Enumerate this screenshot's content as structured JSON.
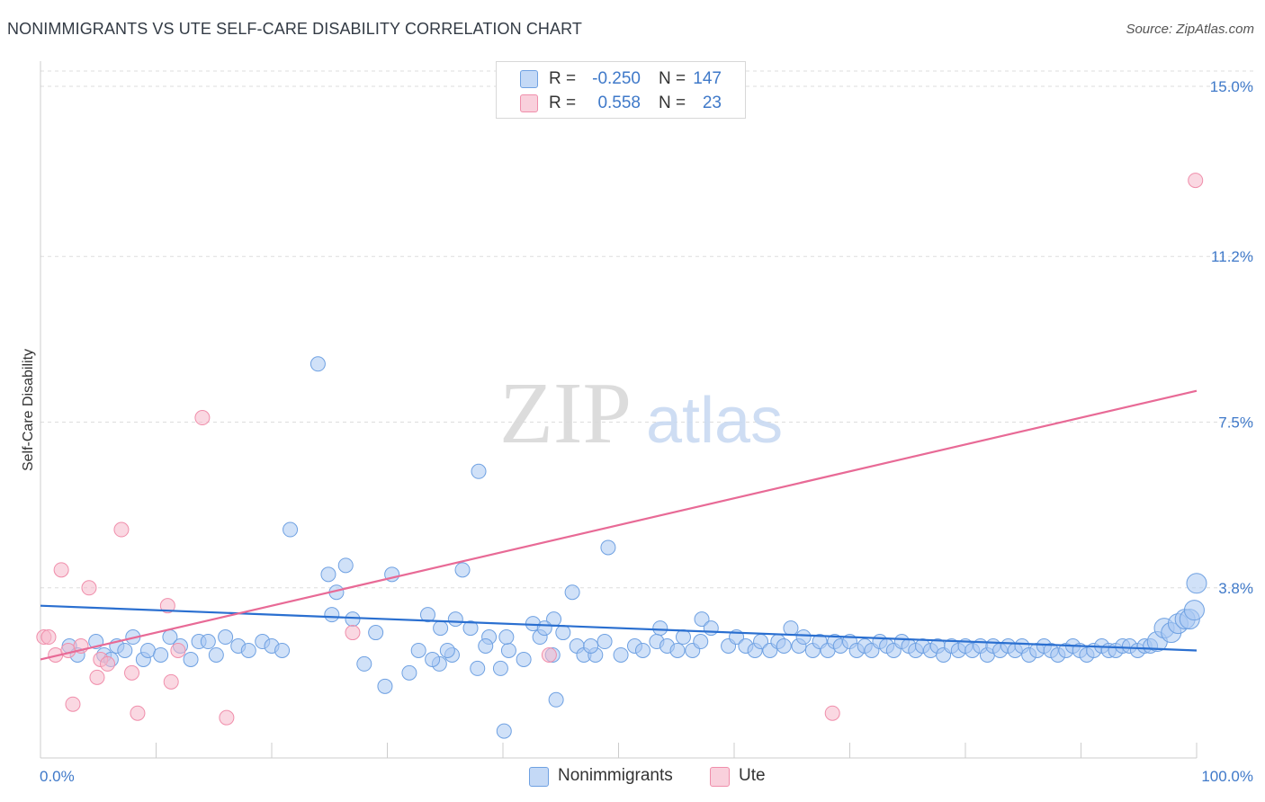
{
  "header": {
    "title": "NONIMMIGRANTS VS UTE SELF-CARE DISABILITY CORRELATION CHART",
    "source": "Source: ZipAtlas.com"
  },
  "watermark": {
    "zip": "ZIP",
    "atlas": "atlas"
  },
  "legend": {
    "rows": [
      {
        "r_label": "R =",
        "r_value": "-0.250",
        "n_label": "N =",
        "n_value": "147",
        "color": "#a9c8f2"
      },
      {
        "r_label": "R =",
        "r_value": "0.558",
        "n_label": "N =",
        "n_value": "23",
        "color": "#f5b8cb"
      }
    ]
  },
  "bottom_legend": {
    "items": [
      {
        "label": "Nonimmigrants",
        "color": "#a9c8f2"
      },
      {
        "label": "Ute",
        "color": "#f5b8cb"
      }
    ]
  },
  "chart_data": {
    "type": "scatter",
    "title": "NONIMMIGRANTS VS UTE SELF-CARE DISABILITY CORRELATION CHART",
    "ylabel": "Self-Care Disability",
    "xlabel": "",
    "xlim": [
      0,
      100
    ],
    "ylim": [
      0,
      15.0
    ],
    "x_tick_labels": [
      "0.0%",
      "100.0%"
    ],
    "y_ticks": [
      3.8,
      7.5,
      11.2,
      15.0
    ],
    "y_tick_labels": [
      "3.8%",
      "7.5%",
      "11.2%",
      "15.0%"
    ],
    "grid": true,
    "legend_position": "top-center",
    "colors": {
      "Nonimmigrants": "#6fa1e2",
      "Ute": "#f08eab",
      "Nonimmigrants_line": "#2a6fd0",
      "Ute_line": "#e86a96"
    },
    "series": [
      {
        "name": "Nonimmigrants",
        "trend": {
          "x": [
            0,
            100
          ],
          "y": [
            3.4,
            2.4
          ]
        },
        "points": [
          [
            24.0,
            8.8
          ],
          [
            37.9,
            6.4
          ],
          [
            21.6,
            5.1
          ],
          [
            49.1,
            4.7
          ],
          [
            26.4,
            4.3
          ],
          [
            24.9,
            4.1
          ],
          [
            36.5,
            4.2
          ],
          [
            30.4,
            4.1
          ],
          [
            25.6,
            3.7
          ],
          [
            25.2,
            3.2
          ],
          [
            42.6,
            3.0
          ],
          [
            29.0,
            2.8
          ],
          [
            34.6,
            2.9
          ],
          [
            38.8,
            2.7
          ],
          [
            43.2,
            2.7
          ],
          [
            45.2,
            2.8
          ],
          [
            48.8,
            2.6
          ],
          [
            53.6,
            2.9
          ],
          [
            57.2,
            3.1
          ],
          [
            58.0,
            2.9
          ],
          [
            53.3,
            2.6
          ],
          [
            54.2,
            2.5
          ],
          [
            55.1,
            2.4
          ],
          [
            55.6,
            2.7
          ],
          [
            56.4,
            2.4
          ],
          [
            57.1,
            2.6
          ],
          [
            59.5,
            2.5
          ],
          [
            60.2,
            2.7
          ],
          [
            61.0,
            2.5
          ],
          [
            61.8,
            2.4
          ],
          [
            62.3,
            2.6
          ],
          [
            63.1,
            2.4
          ],
          [
            63.8,
            2.6
          ],
          [
            64.3,
            2.5
          ],
          [
            64.9,
            2.9
          ],
          [
            65.6,
            2.5
          ],
          [
            66.0,
            2.7
          ],
          [
            66.8,
            2.4
          ],
          [
            67.4,
            2.6
          ],
          [
            68.1,
            2.4
          ],
          [
            68.7,
            2.6
          ],
          [
            69.2,
            2.5
          ],
          [
            70.0,
            2.6
          ],
          [
            70.6,
            2.4
          ],
          [
            71.3,
            2.5
          ],
          [
            71.9,
            2.4
          ],
          [
            72.6,
            2.6
          ],
          [
            73.2,
            2.5
          ],
          [
            73.8,
            2.4
          ],
          [
            74.5,
            2.6
          ],
          [
            75.1,
            2.5
          ],
          [
            75.7,
            2.4
          ],
          [
            76.3,
            2.5
          ],
          [
            77.0,
            2.4
          ],
          [
            77.6,
            2.5
          ],
          [
            78.1,
            2.3
          ],
          [
            78.8,
            2.5
          ],
          [
            79.4,
            2.4
          ],
          [
            80.0,
            2.5
          ],
          [
            80.6,
            2.4
          ],
          [
            81.3,
            2.5
          ],
          [
            81.9,
            2.3
          ],
          [
            82.4,
            2.5
          ],
          [
            83.0,
            2.4
          ],
          [
            83.7,
            2.5
          ],
          [
            84.3,
            2.4
          ],
          [
            84.9,
            2.5
          ],
          [
            85.5,
            2.3
          ],
          [
            86.2,
            2.4
          ],
          [
            86.8,
            2.5
          ],
          [
            87.4,
            2.4
          ],
          [
            88.0,
            2.3
          ],
          [
            88.7,
            2.4
          ],
          [
            89.3,
            2.5
          ],
          [
            89.9,
            2.4
          ],
          [
            90.5,
            2.3
          ],
          [
            91.1,
            2.4
          ],
          [
            91.8,
            2.5
          ],
          [
            92.4,
            2.4
          ],
          [
            93.0,
            2.4
          ],
          [
            93.6,
            2.5
          ],
          [
            94.2,
            2.5
          ],
          [
            94.9,
            2.4
          ],
          [
            95.5,
            2.5
          ],
          [
            96.0,
            2.5
          ],
          [
            96.6,
            2.6
          ],
          [
            97.2,
            2.9
          ],
          [
            97.8,
            2.8
          ],
          [
            98.4,
            3.0
          ],
          [
            99.0,
            3.1
          ],
          [
            99.4,
            3.1
          ],
          [
            99.8,
            3.3
          ],
          [
            100.0,
            3.9
          ],
          [
            2.5,
            2.5
          ],
          [
            3.2,
            2.3
          ],
          [
            4.8,
            2.6
          ],
          [
            5.5,
            2.3
          ],
          [
            6.1,
            2.2
          ],
          [
            6.6,
            2.5
          ],
          [
            7.3,
            2.4
          ],
          [
            8.0,
            2.7
          ],
          [
            8.9,
            2.2
          ],
          [
            9.3,
            2.4
          ],
          [
            10.4,
            2.3
          ],
          [
            11.2,
            2.7
          ],
          [
            12.1,
            2.5
          ],
          [
            13.0,
            2.2
          ],
          [
            13.7,
            2.6
          ],
          [
            14.5,
            2.6
          ],
          [
            15.2,
            2.3
          ],
          [
            16.0,
            2.7
          ],
          [
            17.1,
            2.5
          ],
          [
            18.0,
            2.4
          ],
          [
            19.2,
            2.6
          ],
          [
            20.0,
            2.5
          ],
          [
            20.9,
            2.4
          ],
          [
            28.0,
            2.1
          ],
          [
            29.8,
            1.6
          ],
          [
            32.7,
            2.4
          ],
          [
            34.5,
            2.1
          ],
          [
            35.6,
            2.3
          ],
          [
            37.8,
            2.0
          ],
          [
            39.8,
            2.0
          ],
          [
            35.2,
            2.4
          ],
          [
            46.4,
            2.5
          ],
          [
            47.0,
            2.3
          ],
          [
            48.0,
            2.3
          ],
          [
            44.3,
            2.3
          ],
          [
            41.8,
            2.2
          ],
          [
            50.2,
            2.3
          ],
          [
            51.4,
            2.5
          ],
          [
            52.1,
            2.4
          ],
          [
            40.5,
            2.4
          ],
          [
            31.9,
            1.9
          ],
          [
            33.9,
            2.2
          ],
          [
            46.0,
            3.7
          ],
          [
            47.6,
            2.5
          ],
          [
            44.4,
            3.1
          ],
          [
            27.0,
            3.1
          ],
          [
            33.5,
            3.2
          ],
          [
            35.9,
            3.1
          ],
          [
            37.2,
            2.9
          ],
          [
            38.5,
            2.5
          ],
          [
            43.6,
            2.9
          ],
          [
            40.3,
            2.7
          ],
          [
            44.6,
            1.3
          ],
          [
            40.1,
            0.6
          ]
        ]
      },
      {
        "name": "Ute",
        "trend": {
          "x": [
            0,
            100
          ],
          "y": [
            2.2,
            8.2
          ]
        },
        "points": [
          [
            0.3,
            2.7
          ],
          [
            0.7,
            2.7
          ],
          [
            1.3,
            2.3
          ],
          [
            1.8,
            4.2
          ],
          [
            2.4,
            2.4
          ],
          [
            2.8,
            1.2
          ],
          [
            3.5,
            2.5
          ],
          [
            4.2,
            3.8
          ],
          [
            4.9,
            1.8
          ],
          [
            5.2,
            2.2
          ],
          [
            5.8,
            2.1
          ],
          [
            7.0,
            5.1
          ],
          [
            7.9,
            1.9
          ],
          [
            8.4,
            1.0
          ],
          [
            11.0,
            3.4
          ],
          [
            11.3,
            1.7
          ],
          [
            11.9,
            2.4
          ],
          [
            14.0,
            7.6
          ],
          [
            16.1,
            0.9
          ],
          [
            27.0,
            2.8
          ],
          [
            44.0,
            2.3
          ],
          [
            68.5,
            1.0
          ],
          [
            99.9,
            12.9
          ]
        ]
      }
    ]
  }
}
